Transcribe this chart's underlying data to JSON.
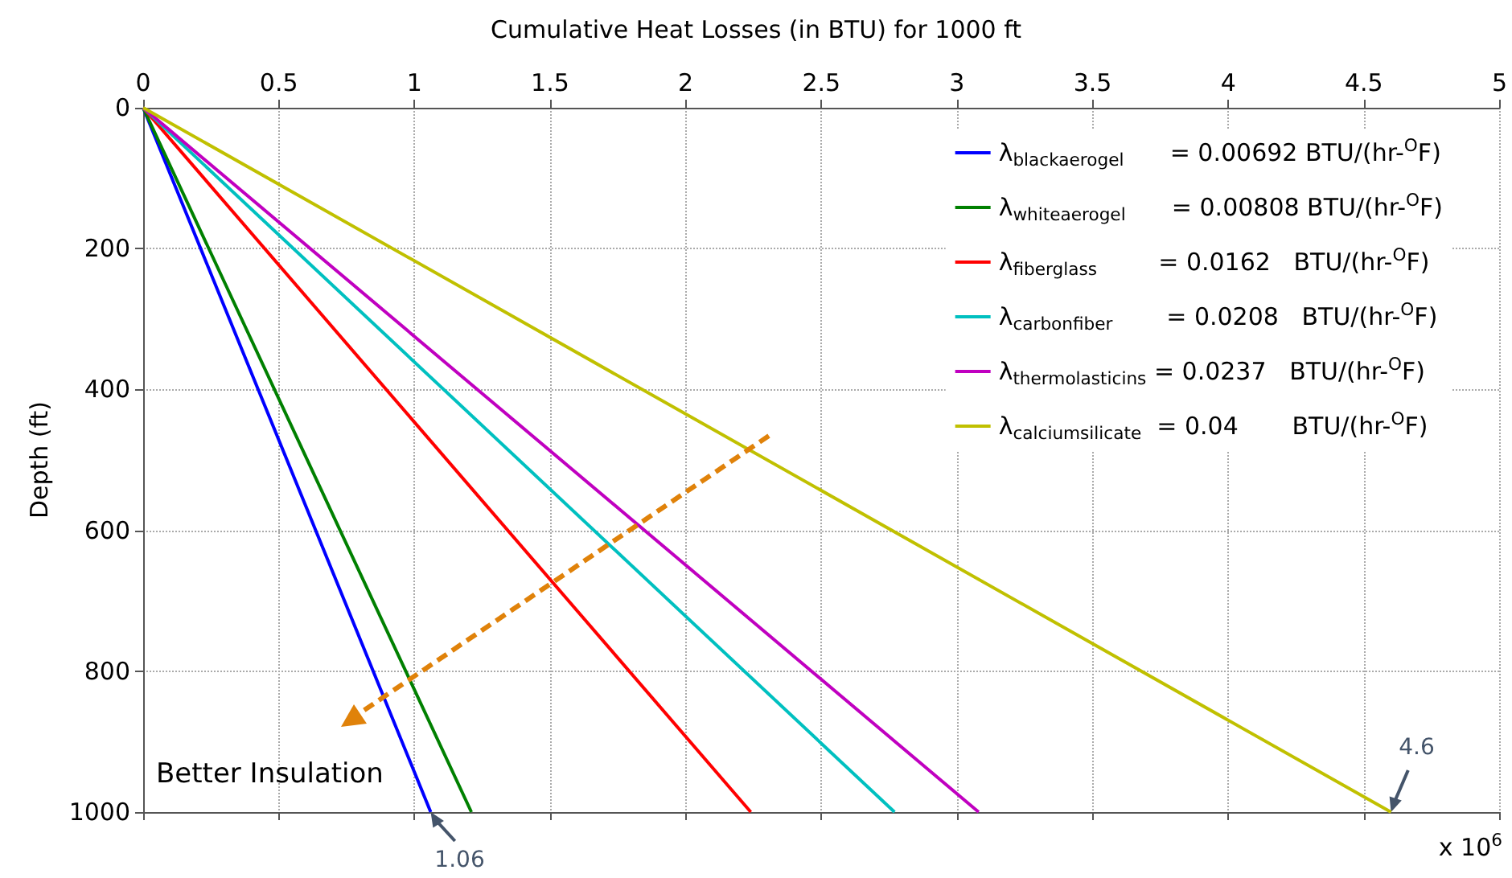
{
  "chart_data": {
    "type": "line",
    "title": "Cumulative Heat Losses (in BTU) for 1000 ft",
    "ylabel": "Depth (ft)",
    "xlim": [
      0,
      5
    ],
    "xticks": [
      0,
      0.5,
      1,
      1.5,
      2,
      2.5,
      3,
      3.5,
      4,
      4.5,
      5
    ],
    "ylim": [
      1000,
      0
    ],
    "yticks": [
      0,
      200,
      400,
      600,
      800,
      {
        "value": 1000,
        "label": "1000"
      }
    ],
    "grid": true,
    "legend": "top right",
    "marker": "none",
    "line_style": "solid",
    "series": [
      {
        "name": "λ$_{blackaerogel}$      = 0.00692 BTU/(hr-$^{O}$F)",
        "color": "#0000ff",
        "x": [
          0,
          1.06
        ],
        "values": [
          0,
          1000
        ]
      },
      {
        "name": "λ$_{whiteaerogel}$      = 0.00808 BTU/(hr-$^{O}$F)",
        "color": "#008000",
        "x": [
          0,
          1.21
        ],
        "values": [
          0,
          1000
        ]
      },
      {
        "name": "λ$_{fiberglass}$        = 0.0162   BTU/(hr-$^{O}$F)",
        "color": "#ff0000",
        "x": [
          0,
          2.24
        ],
        "values": [
          0,
          1000
        ]
      },
      {
        "name": "λ$_{carbonfiber}$       = 0.0208   BTU/(hr-$^{O}$F)",
        "color": "#00c0c0",
        "x": [
          0,
          2.77
        ],
        "values": [
          0,
          1000
        ]
      },
      {
        "name": "λ$_{thermolasticins}$ = 0.0237   BTU/(hr-$^{O}$F)",
        "color": "#c000c0",
        "x": [
          0,
          3.08
        ],
        "values": [
          0,
          1000
        ]
      },
      {
        "name": "λ$_{calciumsilicate}$  = 0.04       BTU/(hr-$^{O}$F)",
        "color": "#c0c000",
        "x": [
          0,
          4.6
        ],
        "values": [
          0,
          1000
        ]
      }
    ],
    "annotations": [
      {
        "text": "1.06",
        "x": 1.06,
        "y": 1000
      },
      {
        "text": "4.6",
        "x": 4.6,
        "y": 1000
      },
      "Better Insulation",
      "x 10$^{6}$"
    ]
  }
}
